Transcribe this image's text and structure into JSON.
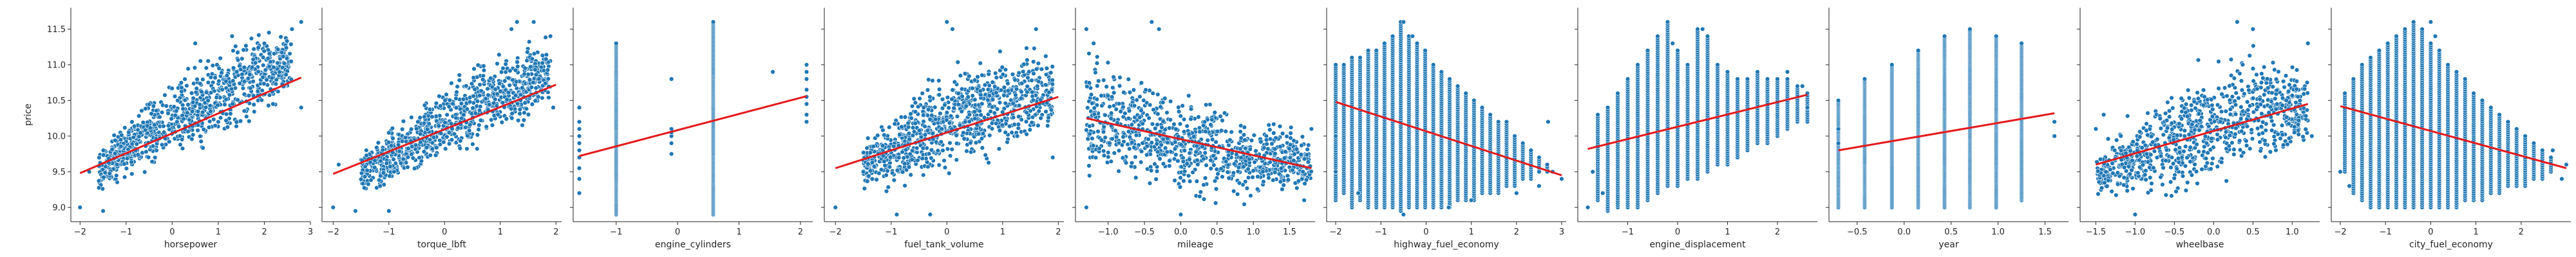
{
  "chart_data": {
    "type": "scatter",
    "ylabel": "price",
    "ylim": [
      8.8,
      11.8
    ],
    "yticks": [
      9.0,
      9.5,
      10.0,
      10.5,
      11.0,
      11.5
    ],
    "fit_line_color": "#e41a1c",
    "point_color": "#1f77b4",
    "panels": [
      {
        "xlabel": "horsepower",
        "xlim": [
          -2.2,
          3.0
        ],
        "xticks": [
          -2,
          -1,
          0,
          1,
          2,
          3
        ],
        "trend": [
          [
            -2.0,
            9.48
          ],
          [
            2.8,
            10.82
          ]
        ],
        "cloud": [
          [
            -1.6,
            9.1,
            9.9
          ],
          [
            -1.0,
            9.3,
            10.3
          ],
          [
            -0.5,
            9.4,
            10.6
          ],
          [
            0,
            9.6,
            10.9
          ],
          [
            0.5,
            9.7,
            11.1
          ],
          [
            1.0,
            9.8,
            11.3
          ],
          [
            1.5,
            10.0,
            11.5
          ],
          [
            2.0,
            10.2,
            11.6
          ],
          [
            2.6,
            10.4,
            11.6
          ]
        ],
        "points": [
          [
            -2.0,
            9.0
          ],
          [
            -1.8,
            9.5
          ],
          [
            -1.5,
            8.95
          ],
          [
            -1.2,
            9.6
          ],
          [
            2.0,
            11.3
          ],
          [
            2.1,
            11.45
          ],
          [
            2.6,
            11.5
          ],
          [
            2.8,
            10.4
          ],
          [
            2.8,
            11.6
          ],
          [
            1.3,
            11.4
          ],
          [
            0.5,
            11.3
          ]
        ]
      },
      {
        "xlabel": "torque_lbft",
        "xlim": [
          -2.2,
          2.1
        ],
        "xticks": [
          -2,
          -1,
          0,
          1,
          2
        ],
        "trend": [
          [
            -2.0,
            9.47
          ],
          [
            2.0,
            10.72
          ]
        ],
        "cloud": [
          [
            -1.5,
            9.1,
            9.9
          ],
          [
            -1.0,
            9.2,
            10.2
          ],
          [
            -0.5,
            9.4,
            10.5
          ],
          [
            0,
            9.5,
            10.8
          ],
          [
            0.5,
            9.7,
            11.1
          ],
          [
            1.0,
            9.9,
            11.3
          ],
          [
            1.5,
            10.1,
            11.5
          ],
          [
            1.9,
            10.3,
            11.5
          ]
        ],
        "points": [
          [
            -2.0,
            9.0
          ],
          [
            -1.9,
            9.6
          ],
          [
            -1.6,
            8.95
          ],
          [
            1.2,
            11.5
          ],
          [
            1.3,
            11.6
          ],
          [
            1.6,
            11.6
          ],
          [
            1.9,
            11.4
          ],
          [
            1.95,
            10.4
          ],
          [
            -1.0,
            8.95
          ]
        ]
      },
      {
        "xlabel": "engine_cylinders",
        "xlim": [
          -1.7,
          2.2
        ],
        "xticks": [
          -1,
          0,
          1,
          2
        ],
        "trend": [
          [
            -1.6,
            9.72
          ],
          [
            2.1,
            10.56
          ]
        ],
        "cloud": [],
        "points": [
          [
            -1.6,
            9.4
          ],
          [
            -1.6,
            9.55
          ],
          [
            -1.6,
            9.7
          ],
          [
            -1.6,
            9.8
          ],
          [
            -1.6,
            9.9
          ],
          [
            -1.6,
            10.0
          ],
          [
            -1.6,
            10.1
          ],
          [
            -1.6,
            10.2
          ],
          [
            -1.6,
            10.4
          ],
          [
            -1.6,
            9.2
          ],
          [
            -0.1,
            9.75
          ],
          [
            -0.1,
            9.9
          ],
          [
            -0.1,
            10.0
          ],
          [
            -0.1,
            10.05
          ],
          [
            -0.1,
            10.1
          ],
          [
            -0.1,
            10.8
          ],
          [
            1.55,
            10.9
          ],
          [
            2.1,
            10.2
          ],
          [
            2.1,
            10.3
          ],
          [
            2.1,
            10.45
          ],
          [
            2.1,
            10.55
          ],
          [
            2.1,
            10.65
          ],
          [
            2.1,
            10.8
          ],
          [
            2.1,
            10.9
          ],
          [
            2.1,
            11.0
          ]
        ],
        "bars": [
          [
            -1.0,
            8.9,
            11.3
          ],
          [
            0.58,
            8.9,
            11.6
          ]
        ]
      },
      {
        "xlabel": "fuel_tank_volume",
        "xlim": [
          -2.2,
          2.1
        ],
        "xticks": [
          -2,
          -1,
          0,
          1,
          2
        ],
        "trend": [
          [
            -2.0,
            9.55
          ],
          [
            2.0,
            10.55
          ]
        ],
        "cloud": [
          [
            -1.5,
            9.1,
            10.0
          ],
          [
            -1.0,
            9.1,
            10.4
          ],
          [
            -0.5,
            9.2,
            10.8
          ],
          [
            0,
            9.3,
            11.1
          ],
          [
            0.5,
            9.4,
            11.3
          ],
          [
            1.0,
            9.6,
            11.3
          ],
          [
            1.5,
            9.8,
            11.4
          ],
          [
            1.9,
            10.0,
            11.2
          ]
        ],
        "points": [
          [
            -2.0,
            9.0
          ],
          [
            -1.5,
            9.5
          ],
          [
            0.0,
            11.6
          ],
          [
            0.1,
            11.5
          ],
          [
            1.6,
            11.5
          ],
          [
            1.9,
            9.7
          ],
          [
            -0.9,
            8.9
          ],
          [
            -0.3,
            8.9
          ]
        ]
      },
      {
        "xlabel": "mileage",
        "xlim": [
          -1.45,
          1.85
        ],
        "xticks": [
          -1.0,
          -0.5,
          0.0,
          0.5,
          1.0,
          1.5
        ],
        "trend": [
          [
            -1.3,
            10.25
          ],
          [
            1.8,
            9.55
          ]
        ],
        "cloud": [
          [
            -1.3,
            9.3,
            11.3
          ],
          [
            -1.0,
            9.2,
            11.2
          ],
          [
            -0.5,
            9.1,
            11.0
          ],
          [
            0,
            9.0,
            10.8
          ],
          [
            0.5,
            9.0,
            10.6
          ],
          [
            1.0,
            9.0,
            10.4
          ],
          [
            1.5,
            9.1,
            10.2
          ],
          [
            1.8,
            9.2,
            10.0
          ]
        ],
        "points": [
          [
            -1.3,
            11.5
          ],
          [
            -1.2,
            11.3
          ],
          [
            -0.4,
            11.6
          ],
          [
            -0.3,
            11.5
          ],
          [
            0.0,
            8.9
          ],
          [
            1.7,
            9.1
          ],
          [
            1.8,
            10.1
          ],
          [
            -1.3,
            9.0
          ]
        ]
      },
      {
        "xlabel": "highway_fuel_economy",
        "xlim": [
          -2.2,
          3.1
        ],
        "xticks": [
          -2,
          -1,
          0,
          1,
          2,
          3
        ],
        "trend": [
          [
            -2.0,
            10.48
          ],
          [
            3.0,
            9.45
          ]
        ],
        "cloud": [],
        "points": [
          [
            -2.0,
            10.0
          ],
          [
            -2.0,
            9.5
          ],
          [
            -1.5,
            9.2
          ],
          [
            -0.5,
            8.9
          ],
          [
            0.5,
            9.0
          ],
          [
            1.0,
            9.1
          ],
          [
            2.0,
            9.2
          ],
          [
            2.5,
            9.3
          ],
          [
            2.5,
            9.5
          ],
          [
            2.8,
            9.5
          ],
          [
            3.0,
            9.4
          ],
          [
            2.7,
            10.2
          ],
          [
            -0.5,
            11.6
          ],
          [
            -0.3,
            11.4
          ]
        ],
        "strips": {
          "start": -2.0,
          "step": 0.18,
          "count": 27,
          "lo": [
            9.1,
            9.2,
            9.0,
            9.1,
            9.0,
            9.0,
            9.0,
            9.0,
            8.95,
            9.0,
            9.0,
            9.0,
            9.0,
            9.0,
            9.0,
            9.1,
            9.1,
            9.1,
            9.2,
            9.2,
            9.2,
            9.3,
            9.3,
            9.4,
            9.4,
            9.5,
            9.5
          ],
          "hi": [
            11.0,
            11.0,
            11.1,
            11.1,
            11.2,
            11.2,
            11.3,
            11.4,
            11.6,
            11.4,
            11.3,
            11.2,
            11.0,
            10.9,
            10.8,
            10.7,
            10.6,
            10.5,
            10.4,
            10.3,
            10.2,
            10.2,
            10.0,
            9.9,
            9.8,
            9.7,
            9.6
          ]
        }
      },
      {
        "xlabel": "engine_displacement",
        "xlim": [
          -2.0,
          2.8
        ],
        "xticks": [
          -1,
          0,
          1,
          2
        ],
        "trend": [
          [
            -1.8,
            9.82
          ],
          [
            2.6,
            10.58
          ]
        ],
        "cloud": [],
        "points": [
          [
            -1.8,
            9.0
          ],
          [
            -1.7,
            9.5
          ],
          [
            -1.5,
            9.2
          ],
          [
            2.5,
            10.7
          ],
          [
            2.6,
            10.4
          ],
          [
            2.2,
            10.9
          ],
          [
            -0.1,
            11.3
          ],
          [
            0.5,
            11.5
          ]
        ],
        "strips": {
          "start": -1.6,
          "step": 0.2,
          "count": 22,
          "lo": [
            9.1,
            8.95,
            9.0,
            9.0,
            9.0,
            9.1,
            9.2,
            9.3,
            9.3,
            9.4,
            9.4,
            9.5,
            9.6,
            9.6,
            9.7,
            9.8,
            9.9,
            9.9,
            10.0,
            10.1,
            10.2,
            10.2
          ],
          "hi": [
            10.3,
            10.4,
            10.6,
            10.8,
            11.0,
            11.2,
            11.4,
            11.6,
            11.2,
            11.0,
            11.5,
            11.4,
            11.0,
            10.9,
            10.8,
            10.8,
            10.9,
            10.8,
            10.8,
            10.8,
            10.7,
            10.6
          ]
        }
      },
      {
        "xlabel": "year",
        "xlim": [
          -0.8,
          1.75
        ],
        "xticks": [
          -0.5,
          0.0,
          0.5,
          1.0,
          1.5
        ],
        "trend": [
          [
            -0.7,
            9.8
          ],
          [
            1.6,
            10.32
          ]
        ],
        "cloud": [],
        "points": [
          [
            1.6,
            10.0
          ],
          [
            1.6,
            10.2
          ],
          [
            -0.7,
            9.9
          ],
          [
            -0.7,
            10.1
          ]
        ],
        "bars": [
          [
            -0.7,
            9.0,
            10.5
          ],
          [
            -0.42,
            9.0,
            10.8
          ],
          [
            -0.13,
            9.0,
            11.0
          ],
          [
            0.15,
            9.0,
            11.2
          ],
          [
            0.43,
            9.0,
            11.4
          ],
          [
            0.7,
            9.0,
            11.5
          ],
          [
            0.98,
            9.0,
            11.4
          ],
          [
            1.25,
            9.1,
            11.3
          ]
        ]
      },
      {
        "xlabel": "wheelbase",
        "xlim": [
          -1.7,
          1.35
        ],
        "xticks": [
          -1.5,
          -1.0,
          -0.5,
          0.0,
          0.5,
          1.0
        ],
        "trend": [
          [
            -1.5,
            9.6
          ],
          [
            1.2,
            10.45
          ]
        ],
        "cloud": [
          [
            -1.5,
            9.1,
            9.8
          ],
          [
            -1.2,
            9.0,
            10.2
          ],
          [
            -0.9,
            9.0,
            10.5
          ],
          [
            -0.5,
            9.0,
            10.8
          ],
          [
            -0.2,
            9.1,
            11.1
          ],
          [
            0.2,
            9.2,
            11.3
          ],
          [
            0.6,
            9.4,
            11.4
          ],
          [
            1.0,
            9.6,
            11.3
          ],
          [
            1.2,
            9.8,
            11.0
          ]
        ],
        "points": [
          [
            -1.5,
            10.1
          ],
          [
            -1.4,
            10.3
          ],
          [
            0.3,
            11.6
          ],
          [
            0.5,
            11.5
          ],
          [
            1.2,
            11.3
          ],
          [
            1.25,
            10.0
          ],
          [
            -1.0,
            8.9
          ]
        ]
      },
      {
        "xlabel": "city_fuel_economy",
        "xlim": [
          -2.2,
          3.1
        ],
        "xticks": [
          -2,
          -1,
          0,
          1,
          2
        ],
        "trend": [
          [
            -2.0,
            10.42
          ],
          [
            3.0,
            9.55
          ]
        ],
        "cloud": [],
        "points": [
          [
            -2.0,
            9.5
          ],
          [
            -1.8,
            9.3
          ],
          [
            0.0,
            11.6
          ],
          [
            0.1,
            11.4
          ],
          [
            2.9,
            9.4
          ],
          [
            3.0,
            9.6
          ],
          [
            2.7,
            9.8
          ]
        ],
        "strips": {
          "start": -1.9,
          "step": 0.19,
          "count": 25,
          "lo": [
            9.5,
            9.2,
            9.1,
            9.0,
            9.0,
            9.0,
            9.0,
            9.0,
            9.0,
            9.0,
            9.0,
            9.0,
            9.0,
            9.0,
            9.1,
            9.1,
            9.1,
            9.2,
            9.2,
            9.3,
            9.3,
            9.3,
            9.4,
            9.4,
            9.5
          ],
          "hi": [
            10.6,
            10.8,
            11.0,
            11.1,
            11.2,
            11.3,
            11.4,
            11.5,
            11.6,
            11.5,
            11.3,
            11.2,
            11.0,
            10.9,
            10.8,
            10.6,
            10.5,
            10.4,
            10.3,
            10.2,
            10.1,
            10.0,
            9.9,
            9.8,
            9.7
          ]
        }
      }
    ]
  }
}
